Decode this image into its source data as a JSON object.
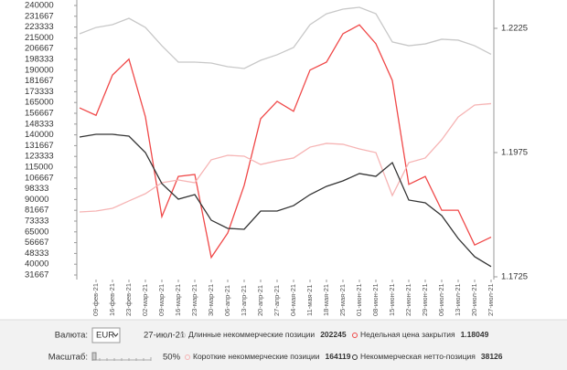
{
  "chart_data": {
    "type": "line",
    "categories": [
      null,
      "09-фев-21",
      "16-фев-21",
      "23-фев-21",
      "02-мар-21",
      "09-мар-21",
      "16-мар-21",
      "23-мар-21",
      "30-мар-21",
      "06-апр-21",
      "13-апр-21",
      "20-апр-21",
      "27-апр-21",
      "04-мая-21",
      "11-мая-21",
      "18-мая-21",
      "25-мая-21",
      "01-июн-21",
      "08-июн-21",
      "15-июн-21",
      "22-июн-21",
      "29-июн-21",
      "06-июл-21",
      "13-июл-21",
      "20-июл-21",
      "27-июл-21"
    ],
    "series": [
      {
        "name": "Длинные некоммерческие позиции",
        "color": "#c8c8c8",
        "values": [
          218100,
          223000,
          225200,
          230100,
          223000,
          208900,
          196200,
          196200,
          195500,
          192700,
          191300,
          197600,
          201900,
          207500,
          225200,
          233600,
          237200,
          238600,
          233600,
          211800,
          208900,
          210300,
          213900,
          213200,
          208900,
          202245
        ]
      },
      {
        "name": "Недельная цена закрытия",
        "color": "#f04848",
        "axis": "y2",
        "values": [
          1.2065,
          1.205,
          1.2131,
          1.2163,
          1.2047,
          1.1846,
          1.1927,
          1.1931,
          1.1764,
          1.1813,
          1.1909,
          1.2043,
          1.2078,
          1.2058,
          1.2141,
          1.2157,
          1.2214,
          1.2232,
          1.2194,
          1.212,
          1.1911,
          1.1927,
          1.1859,
          1.1859,
          1.1789,
          1.18049
        ]
      },
      {
        "name": "Короткие некоммерческие позиции",
        "color": "#f6b4b4",
        "values": [
          80400,
          81100,
          83200,
          88900,
          94500,
          103000,
          105100,
          103000,
          120700,
          124200,
          123500,
          117100,
          119900,
          122100,
          130500,
          133400,
          132700,
          129100,
          126300,
          93100,
          118500,
          122100,
          136200,
          153800,
          163000,
          164119
        ]
      },
      {
        "name": "Некоммерческая нетто-позиция",
        "color": "#333333",
        "values": [
          138300,
          140400,
          140400,
          139000,
          126300,
          102300,
          90300,
          93800,
          74000,
          67700,
          67000,
          81100,
          81100,
          85300,
          93800,
          100200,
          104400,
          110100,
          107900,
          118500,
          89600,
          87500,
          77600,
          59900,
          45800,
          38126
        ]
      }
    ],
    "ylim": [
      31667,
      240000
    ],
    "yticks": [
      240000,
      231667,
      223333,
      215000,
      206667,
      198333,
      190000,
      181667,
      173333,
      165000,
      156667,
      148333,
      140000,
      131667,
      123333,
      115000,
      106667,
      98333,
      90000,
      81667,
      73333,
      65000,
      56667,
      48333,
      40000,
      31667
    ],
    "y2lim": [
      1.1725,
      1.2225
    ],
    "y2ticks": [
      1.2225,
      1.1975,
      1.1725
    ]
  },
  "controls": {
    "currency_label": "Валюта:",
    "currency": "EUR",
    "date": "27-июл-21",
    "scale_label": "Масштаб:",
    "scale": "50%"
  }
}
